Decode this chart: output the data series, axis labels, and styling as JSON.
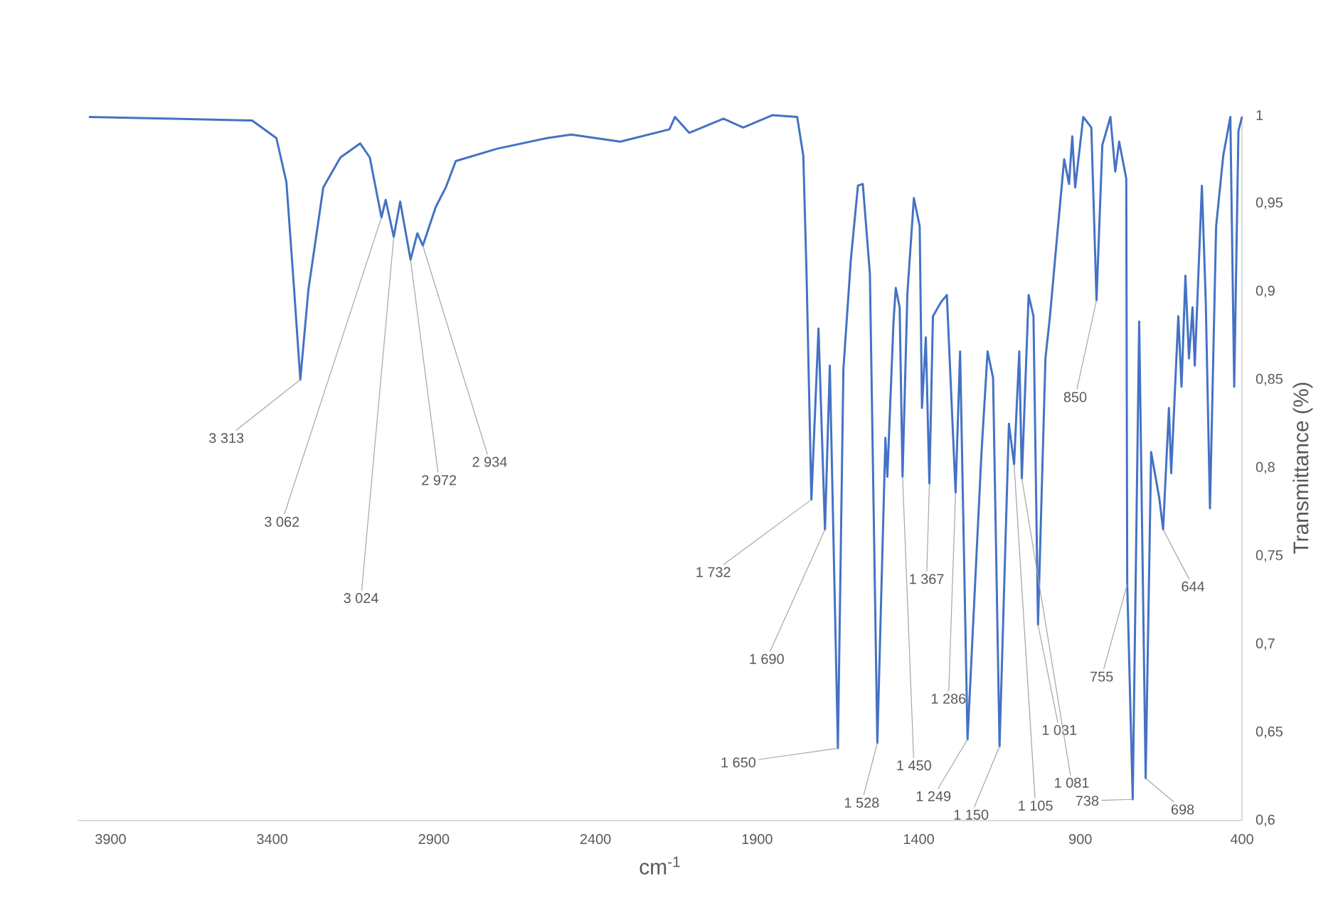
{
  "chart_data": {
    "type": "line",
    "xlabel": "cm$^{-1}$",
    "ylabel": "Transmittance (%)",
    "color": "#4472c4",
    "xlim": [
      4000,
      400
    ],
    "xticks": [
      3900,
      3400,
      2900,
      2400,
      1900,
      1400,
      900,
      400
    ],
    "ylim": [
      0.6,
      1
    ],
    "yticks": [
      {
        "value": 0.6,
        "label": "0,6"
      },
      {
        "value": 0.65,
        "label": "0,65"
      },
      {
        "value": 0.7,
        "label": "0,7"
      },
      {
        "value": 0.75,
        "label": "0,75"
      },
      {
        "value": 0.8,
        "label": "0,8"
      },
      {
        "value": 0.85,
        "label": "0,85"
      },
      {
        "value": 0.9,
        "label": "0,9"
      },
      {
        "value": 0.95,
        "label": "0,95"
      },
      {
        "value": 1,
        "label": "1"
      }
    ],
    "x": [
      3967,
      3462,
      3387,
      3356,
      3334,
      3313,
      3288,
      3242,
      3189,
      3128,
      3098,
      3062,
      3049,
      3024,
      3004,
      2972,
      2951,
      2934,
      2894,
      2863,
      2832,
      2704,
      2550,
      2475,
      2323,
      2171,
      2154,
      2110,
      2004,
      1943,
      1852,
      1776,
      1757,
      1747,
      1732,
      1710,
      1690,
      1675,
      1650,
      1633,
      1610,
      1588,
      1573,
      1551,
      1528,
      1503,
      1497,
      1478,
      1471,
      1459,
      1450,
      1435,
      1415,
      1397,
      1390,
      1378,
      1367,
      1356,
      1331,
      1313,
      1286,
      1272,
      1249,
      1206,
      1187,
      1170,
      1150,
      1121,
      1105,
      1089,
      1081,
      1060,
      1045,
      1031,
      1008,
      994,
      972,
      950,
      935,
      925,
      916,
      891,
      866,
      850,
      832,
      807,
      792,
      780,
      758,
      755,
      738,
      718,
      698,
      681,
      656,
      644,
      626,
      619,
      597,
      587,
      575,
      564,
      553,
      546,
      524,
      512,
      499,
      480,
      458,
      436,
      424,
      411,
      400
    ],
    "values": [
      0.999,
      0.997,
      0.987,
      0.962,
      0.906,
      0.85,
      0.901,
      0.959,
      0.976,
      0.984,
      0.976,
      0.942,
      0.952,
      0.931,
      0.951,
      0.918,
      0.933,
      0.926,
      0.948,
      0.959,
      0.974,
      0.981,
      0.987,
      0.989,
      0.985,
      0.992,
      0.999,
      0.99,
      0.998,
      0.993,
      1.0,
      0.999,
      0.977,
      0.91,
      0.782,
      0.879,
      0.765,
      0.858,
      0.641,
      0.856,
      0.918,
      0.96,
      0.961,
      0.91,
      0.644,
      0.817,
      0.795,
      0.883,
      0.902,
      0.891,
      0.795,
      0.899,
      0.953,
      0.937,
      0.834,
      0.874,
      0.791,
      0.886,
      0.894,
      0.898,
      0.786,
      0.866,
      0.646,
      0.808,
      0.866,
      0.851,
      0.642,
      0.825,
      0.802,
      0.866,
      0.794,
      0.898,
      0.886,
      0.711,
      0.862,
      0.886,
      0.931,
      0.975,
      0.961,
      0.988,
      0.959,
      0.999,
      0.993,
      0.895,
      0.983,
      0.999,
      0.968,
      0.985,
      0.964,
      0.734,
      0.612,
      0.883,
      0.624,
      0.809,
      0.783,
      0.765,
      0.834,
      0.797,
      0.886,
      0.846,
      0.909,
      0.862,
      0.891,
      0.858,
      0.96,
      0.894,
      0.777,
      0.937,
      0.977,
      0.999,
      0.846,
      0.991,
      0.999
    ],
    "annotations": [
      {
        "text": "3 313",
        "x": 3313,
        "y": 0.85
      },
      {
        "text": "3 062",
        "x": 3062,
        "y": 0.942
      },
      {
        "text": "3 024",
        "x": 3024,
        "y": 0.931
      },
      {
        "text": "2 972",
        "x": 2972,
        "y": 0.918
      },
      {
        "text": "2 934",
        "x": 2934,
        "y": 0.926
      },
      {
        "text": "1 732",
        "x": 1732,
        "y": 0.782
      },
      {
        "text": "1 690",
        "x": 1690,
        "y": 0.765
      },
      {
        "text": "1 650",
        "x": 1650,
        "y": 0.641
      },
      {
        "text": "1 528",
        "x": 1528,
        "y": 0.644
      },
      {
        "text": "1 450",
        "x": 1450,
        "y": 0.795
      },
      {
        "text": "1 367",
        "x": 1367,
        "y": 0.791
      },
      {
        "text": "1 286",
        "x": 1286,
        "y": 0.786
      },
      {
        "text": "1 249",
        "x": 1249,
        "y": 0.646
      },
      {
        "text": "1 150",
        "x": 1150,
        "y": 0.642
      },
      {
        "text": "1 105",
        "x": 1105,
        "y": 0.802
      },
      {
        "text": "1 081",
        "x": 1081,
        "y": 0.794
      },
      {
        "text": "1 031",
        "x": 1031,
        "y": 0.711
      },
      {
        "text": "850",
        "x": 850,
        "y": 0.895
      },
      {
        "text": "755",
        "x": 755,
        "y": 0.734
      },
      {
        "text": "738",
        "x": 738,
        "y": 0.612
      },
      {
        "text": "698",
        "x": 698,
        "y": 0.624
      },
      {
        "text": "644",
        "x": 644,
        "y": 0.765
      }
    ]
  }
}
